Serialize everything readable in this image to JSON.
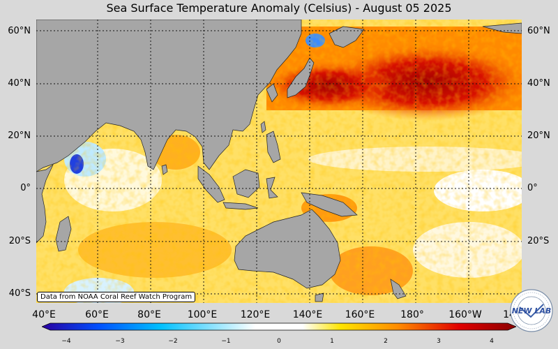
{
  "title": "Sea Surface Temperature Anomaly (Celsius) - August 05 2025",
  "lat_labels": [
    "60°N",
    "40°N",
    "20°N",
    "0°",
    "20°S",
    "40°S"
  ],
  "lon_labels": [
    "40°E",
    "60°E",
    "80°E",
    "100°E",
    "120°E",
    "140°E",
    "160°E",
    "180°",
    "160°W",
    "14"
  ],
  "credit": "Data from NOAA Coral Reef Watch Program",
  "colorbar": {
    "ticks": [
      "−4",
      "−3",
      "−2",
      "−1",
      "0",
      "1",
      "2",
      "3",
      "4"
    ],
    "range": [
      -4,
      4
    ],
    "colors": [
      "#2a00a0",
      "#0050ff",
      "#00c0ff",
      "#ffffff",
      "#ffe400",
      "#ff8c00",
      "#e00000",
      "#8b0000"
    ]
  },
  "logo_text": "NEW LAB",
  "colors": {
    "land": "#a6a6a6",
    "background": "#d9d9d9",
    "warm_max": "#b00000"
  }
}
